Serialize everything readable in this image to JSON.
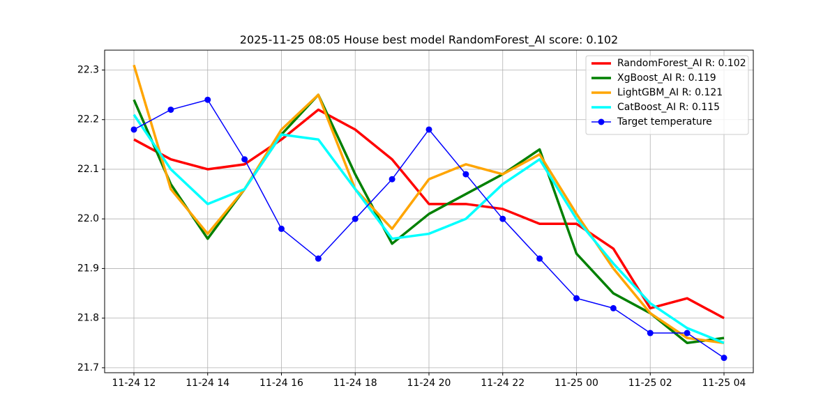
{
  "chart_data": {
    "type": "line",
    "title": "2025-11-25 08:05 House best model RandomForest_AI score: 0.102",
    "categories": [
      "11-24 12",
      null,
      "11-24 14",
      null,
      "11-24 16",
      null,
      "11-24 18",
      null,
      "11-24 20",
      null,
      "11-24 22",
      null,
      "11-25 00",
      null,
      "11-25 02",
      null,
      "11-25 04"
    ],
    "series": [
      {
        "name": "RandomForest_AI R: 0.102",
        "color": "#ff0000",
        "values": [
          22.16,
          22.12,
          22.1,
          22.11,
          22.16,
          22.22,
          22.18,
          22.12,
          22.03,
          22.03,
          22.02,
          21.99,
          21.99,
          21.94,
          21.82,
          21.84,
          21.8
        ]
      },
      {
        "name": "XgBoost_AI R: 0.119",
        "color": "#008000",
        "values": [
          22.24,
          22.07,
          21.96,
          22.06,
          22.17,
          22.25,
          22.09,
          21.95,
          22.01,
          22.05,
          22.09,
          22.14,
          21.93,
          21.85,
          21.81,
          21.75,
          21.76
        ]
      },
      {
        "name": "LightGBM_AI R: 0.121",
        "color": "#ffa500",
        "values": [
          22.31,
          22.06,
          21.97,
          22.06,
          22.18,
          22.25,
          22.06,
          21.98,
          22.08,
          22.11,
          22.09,
          22.13,
          22.01,
          21.9,
          21.81,
          21.76,
          21.75
        ]
      },
      {
        "name": "CatBoost_AI R: 0.115",
        "color": "#00ffff",
        "values": [
          22.21,
          22.1,
          22.03,
          22.06,
          22.17,
          22.16,
          22.06,
          21.96,
          21.97,
          22.0,
          22.07,
          22.12,
          22.0,
          21.91,
          21.83,
          21.78,
          21.75
        ]
      },
      {
        "name": "Target temperature",
        "color": "#0000ff",
        "markers": true,
        "values": [
          22.18,
          22.22,
          22.24,
          22.12,
          21.98,
          21.92,
          22.0,
          22.08,
          22.18,
          22.09,
          22.0,
          21.92,
          21.84,
          21.82,
          21.77,
          21.77,
          21.72
        ]
      }
    ],
    "ylim": [
      21.69,
      22.34
    ],
    "yticks": [
      21.7,
      21.8,
      21.9,
      {
        "value": 22,
        "label": "22.0"
      },
      22.1,
      22.2,
      22.3
    ],
    "grid": true,
    "legend": "upper right"
  }
}
